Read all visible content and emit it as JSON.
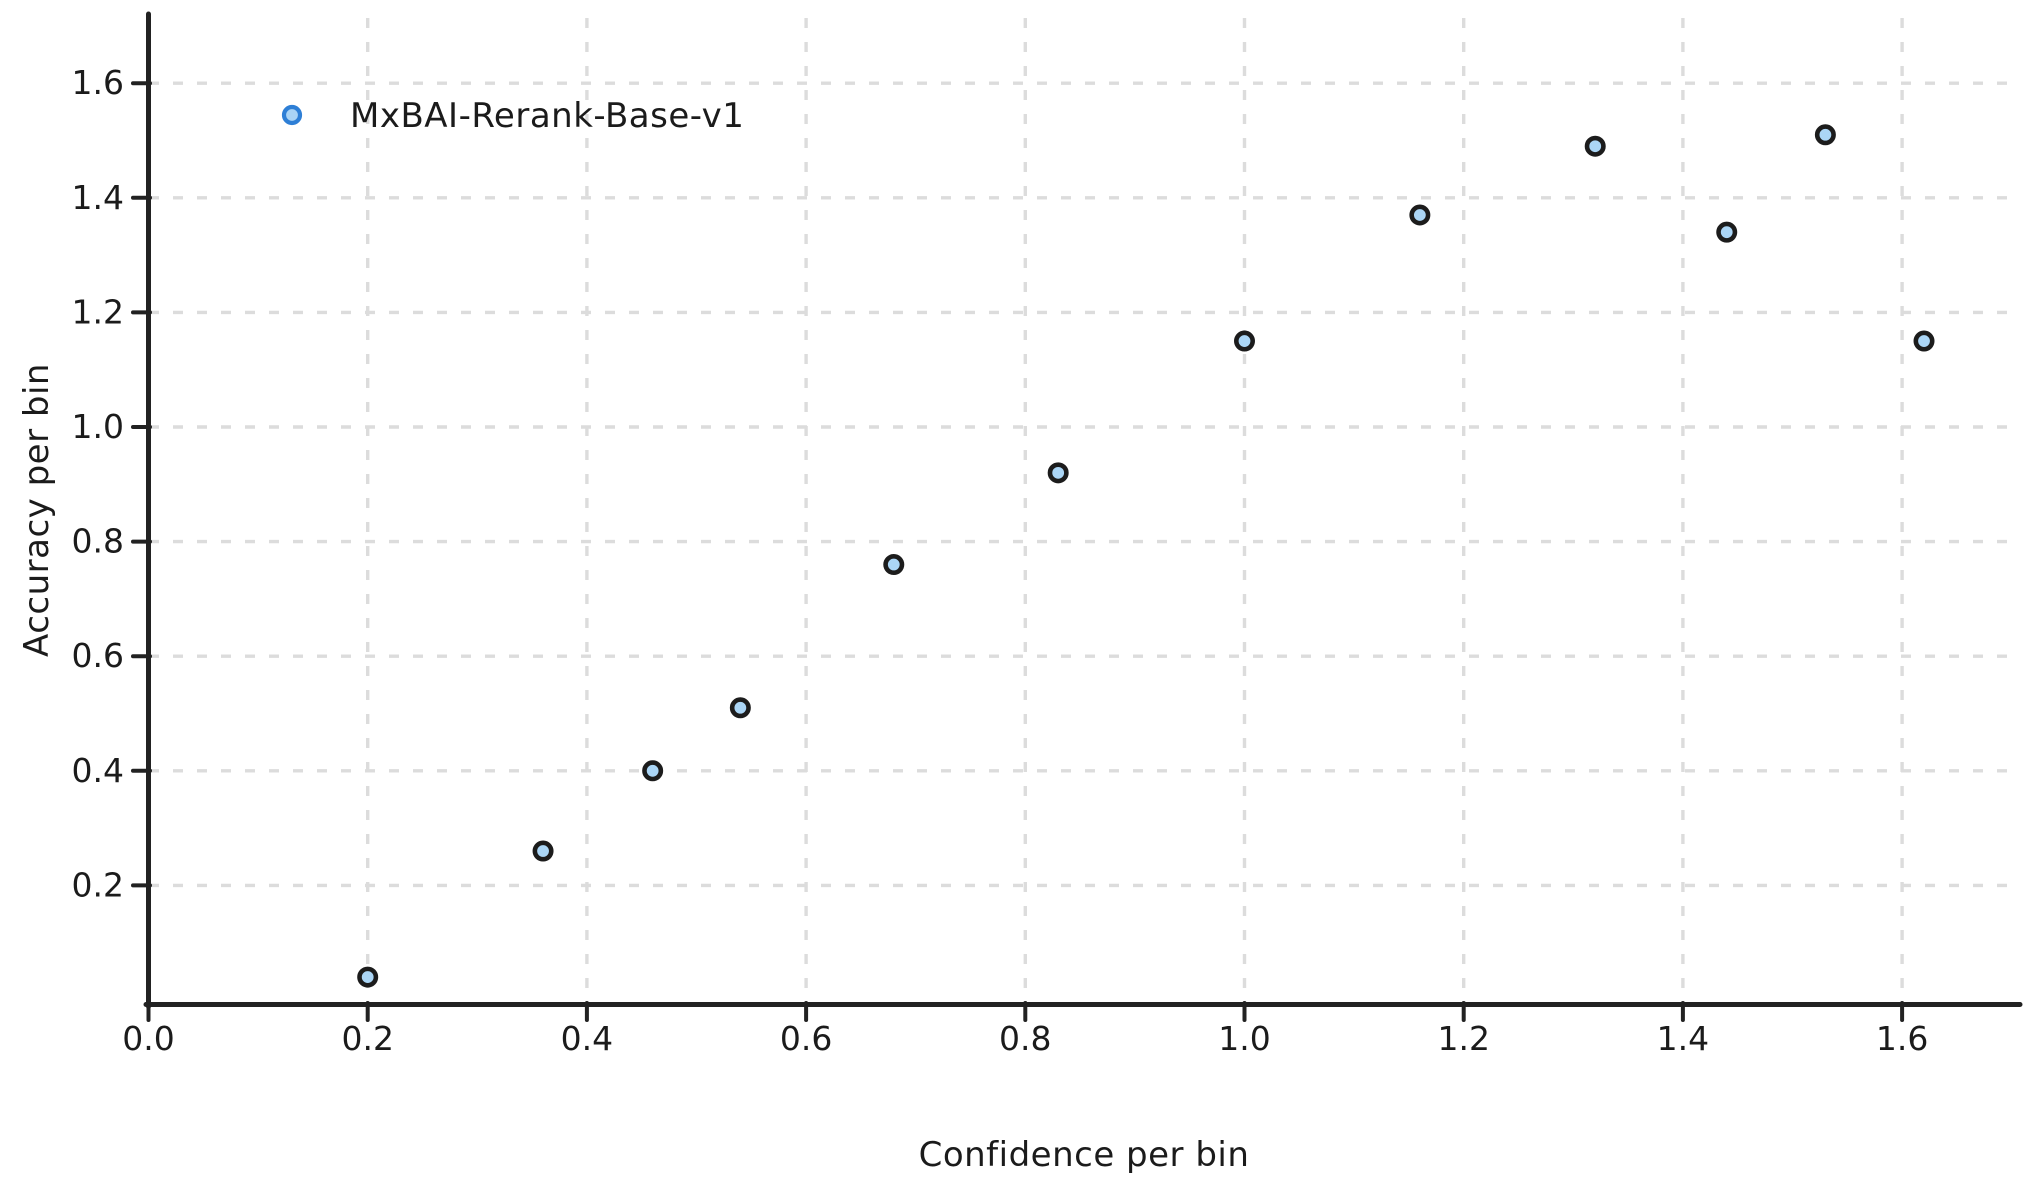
{
  "chart_data": {
    "type": "scatter",
    "title": "",
    "xlabel": "Confidence per bin",
    "ylabel": "Accuracy per bin",
    "xlim": [
      0,
      1.71
    ],
    "ylim": [
      0,
      1.72
    ],
    "grid": true,
    "grid_style": "dashed",
    "xticks": [
      0.0,
      0.2,
      0.4,
      0.6,
      0.8,
      1.0,
      1.2,
      1.4,
      1.6
    ],
    "xtick_labels": [
      "0.0",
      "0.2",
      "0.4",
      "0.6",
      "0.8",
      "1.0",
      "1.2",
      "1.4",
      "1.6"
    ],
    "yticks": [
      0.2,
      0.4,
      0.6,
      0.8,
      1.0,
      1.2,
      1.4,
      1.6
    ],
    "ytick_labels": [
      "0.2",
      "0.4",
      "0.6",
      "0.8",
      "1.0",
      "1.2",
      "1.4",
      "1.6"
    ],
    "legend": {
      "position": "top-left",
      "entries": [
        {
          "label": "MxBAI-Rerank-Base-v1",
          "marker": "circle",
          "marker_fill": "#a9d3f5",
          "marker_stroke": "#2e7fd6"
        }
      ]
    },
    "series": [
      {
        "name": "MxBAI-Rerank-Base-v1",
        "marker": "circle",
        "marker_fill": "#abd6f6",
        "marker_stroke": "#1c1c1c",
        "points": [
          {
            "x": 0.2,
            "y": 0.04
          },
          {
            "x": 0.36,
            "y": 0.26
          },
          {
            "x": 0.46,
            "y": 0.4
          },
          {
            "x": 0.54,
            "y": 0.51
          },
          {
            "x": 0.68,
            "y": 0.76
          },
          {
            "x": 0.83,
            "y": 0.92
          },
          {
            "x": 1.0,
            "y": 1.15
          },
          {
            "x": 1.16,
            "y": 1.37
          },
          {
            "x": 1.32,
            "y": 1.49
          },
          {
            "x": 1.44,
            "y": 1.34
          },
          {
            "x": 1.53,
            "y": 1.51
          },
          {
            "x": 1.62,
            "y": 1.15
          }
        ]
      }
    ],
    "style": {
      "background": "#ffffff",
      "grid_color": "#dcdcdc",
      "axis_color": "#222222",
      "text_color": "#1b1b1b"
    }
  }
}
